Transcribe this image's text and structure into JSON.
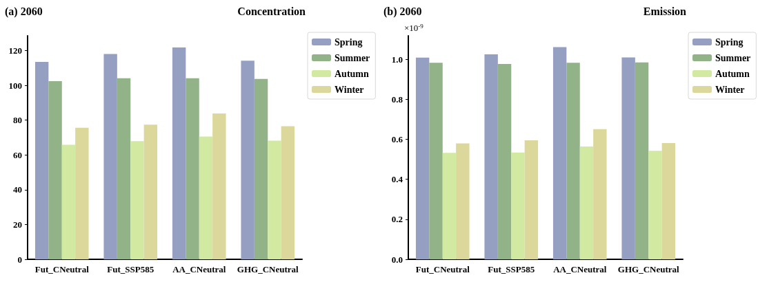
{
  "chart_data": [
    {
      "type": "bar",
      "title": "(a) 2060",
      "subtitle": "Concentration",
      "categories": [
        "Fut_CNeutral",
        "Fut_SSP585",
        "AA_CNeutral",
        "GHG_CNeutral"
      ],
      "series": [
        {
          "name": "Spring",
          "color": "#949fc1",
          "values": [
            113.5,
            118.0,
            121.8,
            114.2
          ]
        },
        {
          "name": "Summer",
          "color": "#92b288",
          "values": [
            102.4,
            104.1,
            104.1,
            103.7
          ]
        },
        {
          "name": "Autumn",
          "color": "#d1e9a1",
          "values": [
            65.8,
            67.9,
            70.6,
            68.2
          ]
        },
        {
          "name": "Winter",
          "color": "#dcd79a",
          "values": [
            75.6,
            77.4,
            83.8,
            76.5
          ]
        }
      ],
      "ylim": [
        0,
        128.5
      ],
      "yticks": [
        0,
        20,
        40,
        60,
        80,
        100,
        120
      ],
      "grid": false,
      "legend": "top right"
    },
    {
      "type": "bar",
      "title": "(b) 2060",
      "subtitle": "Emission",
      "ylabel": "×10$^{-9}$",
      "categories": [
        "Fut_CNeutral",
        "Fut_SSP585",
        "AA_CNeutral",
        "GHG_CNeutral"
      ],
      "series": [
        {
          "name": "Spring",
          "color": "#949fc1",
          "values": [
            1.009,
            1.025,
            1.061,
            1.01
          ]
        },
        {
          "name": "Summer",
          "color": "#92b288",
          "values": [
            0.983,
            0.977,
            0.983,
            0.985
          ]
        },
        {
          "name": "Autumn",
          "color": "#d1e9a1",
          "values": [
            0.532,
            0.534,
            0.564,
            0.543
          ]
        },
        {
          "name": "Winter",
          "color": "#dcd79a",
          "values": [
            0.58,
            0.595,
            0.651,
            0.581
          ]
        }
      ],
      "ylim": [
        0,
        1.118
      ],
      "yticks": [
        {
          "value": 0,
          "label": "0.0"
        },
        {
          "value": 0.2,
          "label": "0.2"
        },
        {
          "value": 0.4,
          "label": "0.4"
        },
        {
          "value": 0.6,
          "label": "0.6"
        },
        {
          "value": 0.8,
          "label": "0.8"
        },
        {
          "value": 1.0,
          "label": "1.0"
        }
      ],
      "grid": false,
      "legend": "top right"
    }
  ]
}
